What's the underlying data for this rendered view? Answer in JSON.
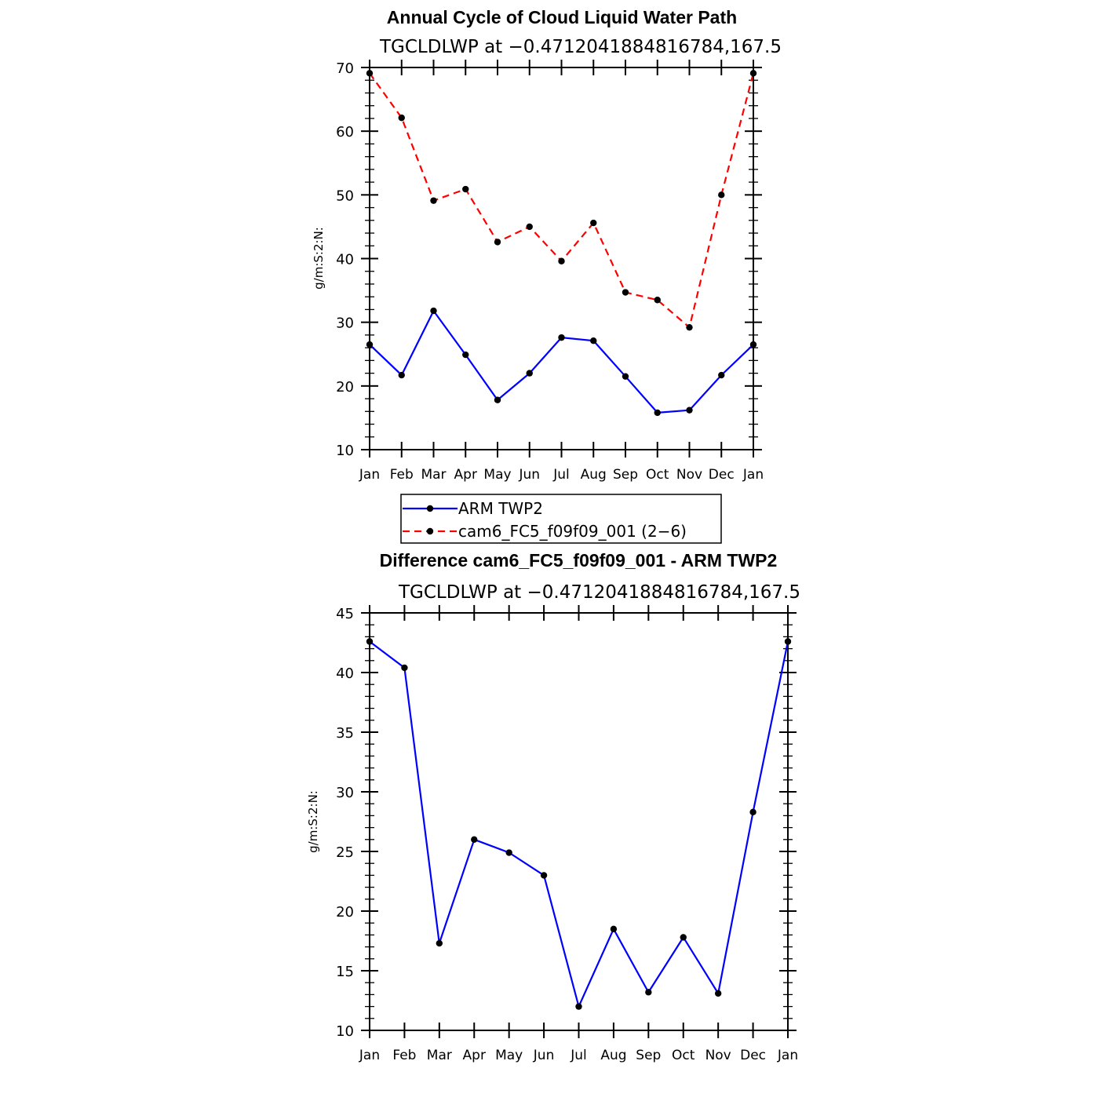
{
  "chart_data": [
    {
      "type": "line",
      "title": "Annual Cycle of Cloud Liquid Water Path",
      "subtitle": "TGCLDLWP at −0.4712041884816784,167.5",
      "ylabel": "g/m:S:2:N:",
      "xlabel": "",
      "categories": [
        "Jan",
        "Feb",
        "Mar",
        "Apr",
        "May",
        "Jun",
        "Jul",
        "Aug",
        "Sep",
        "Oct",
        "Nov",
        "Dec",
        "Jan"
      ],
      "ylim": [
        10,
        70
      ],
      "yticks": [
        10,
        20,
        30,
        40,
        50,
        60,
        70
      ],
      "series": [
        {
          "name": "ARM TWP2",
          "color": "#0000ff",
          "dash": "solid",
          "values": [
            26.5,
            21.7,
            31.8,
            24.9,
            17.8,
            22.0,
            27.6,
            27.1,
            21.5,
            15.8,
            16.2,
            21.7,
            26.5
          ]
        },
        {
          "name": "cam6_FC5_f09f09_001 (2−6)",
          "color": "#ff0000",
          "dash": "dashed",
          "values": [
            69.1,
            62.1,
            49.1,
            50.9,
            42.6,
            45.0,
            39.6,
            45.6,
            34.7,
            33.5,
            29.2,
            50.0,
            69.1
          ]
        }
      ],
      "legend": {
        "placement": "below",
        "entries": [
          "ARM TWP2",
          "cam6_FC5_f09f09_001 (2−6)"
        ]
      }
    },
    {
      "type": "line",
      "title": "Difference cam6_FC5_f09f09_001 - ARM TWP2",
      "subtitle": "TGCLDLWP at −0.4712041884816784,167.5",
      "ylabel": "g/m:S:2:N:",
      "xlabel": "",
      "categories": [
        "Jan",
        "Feb",
        "Mar",
        "Apr",
        "May",
        "Jun",
        "Jul",
        "Aug",
        "Sep",
        "Oct",
        "Nov",
        "Dec",
        "Jan"
      ],
      "ylim": [
        10,
        45
      ],
      "yticks": [
        10,
        15,
        20,
        25,
        30,
        35,
        40,
        45
      ],
      "series": [
        {
          "name": "",
          "color": "#0000ff",
          "dash": "solid",
          "values": [
            42.6,
            40.4,
            17.3,
            26.0,
            24.9,
            23.0,
            12.0,
            18.5,
            13.2,
            17.8,
            13.1,
            28.3,
            42.6
          ]
        }
      ]
    }
  ]
}
